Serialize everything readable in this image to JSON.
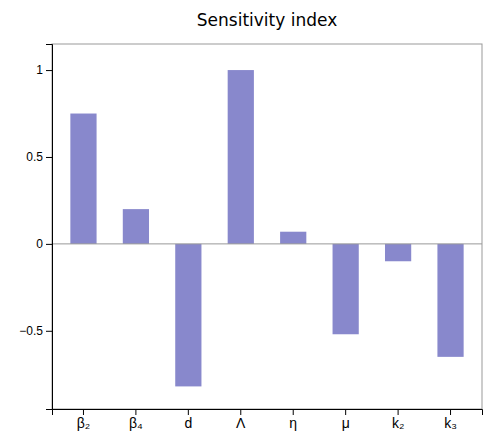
{
  "chart_data": {
    "type": "bar",
    "title": "Sensitivity index",
    "categories": [
      "β₂",
      "β₄",
      "d",
      "Λ",
      "η",
      "μ",
      "k₂",
      "k₃"
    ],
    "values": [
      0.75,
      0.2,
      -0.82,
      1.0,
      0.07,
      -0.52,
      -0.1,
      -0.65
    ],
    "color": "#8888cc",
    "ylim": [
      -0.95,
      1.15
    ],
    "yticks": [
      {
        "value": -0.5,
        "label": "−0.5"
      },
      0,
      0.5,
      1
    ],
    "grid": false
  }
}
